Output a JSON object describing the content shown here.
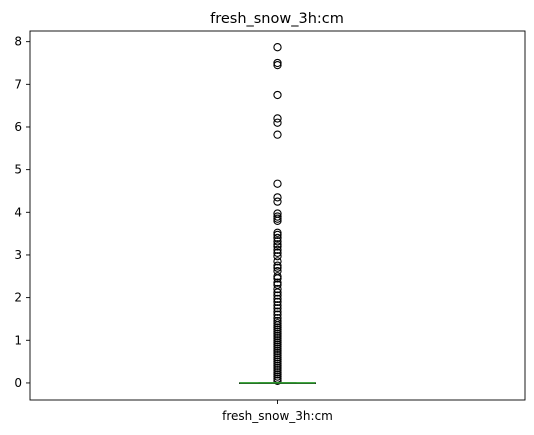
{
  "chart_data": {
    "type": "box",
    "title": "fresh_snow_3h:cm",
    "categories": [
      "fresh_snow_3h:cm"
    ],
    "ylim": [
      -0.4,
      8.25
    ],
    "yticks": [
      0,
      1,
      2,
      3,
      4,
      5,
      6,
      7,
      8
    ],
    "ytick_labels": [
      "0",
      "1",
      "2",
      "3",
      "4",
      "5",
      "6",
      "7",
      "8"
    ],
    "grid": false,
    "median_color": "#2ca02c",
    "series": [
      {
        "q1": 0,
        "median": 0,
        "q3": 0,
        "whisker_low": 0,
        "whisker_high": 0,
        "fliers": [
          7.87,
          7.5,
          7.45,
          6.75,
          6.2,
          6.1,
          5.82,
          4.67,
          4.35,
          4.25,
          3.97,
          3.9,
          3.85,
          3.8,
          3.52,
          3.47,
          3.4,
          3.32,
          3.25,
          3.2,
          3.12,
          3.05,
          2.97,
          2.85,
          2.75,
          2.7,
          2.62,
          2.5,
          2.45,
          2.35,
          2.3,
          2.2,
          2.12,
          2.05,
          1.97,
          1.9,
          1.82,
          1.75,
          1.67,
          1.6,
          1.52,
          1.45,
          1.4,
          1.35,
          1.3,
          1.25,
          1.2,
          1.15,
          1.1,
          1.05,
          1.0,
          0.95,
          0.9,
          0.85,
          0.8,
          0.75,
          0.7,
          0.65,
          0.6,
          0.55,
          0.5,
          0.45,
          0.4,
          0.35,
          0.3,
          0.25,
          0.2,
          0.15,
          0.1,
          0.05
        ]
      }
    ]
  }
}
